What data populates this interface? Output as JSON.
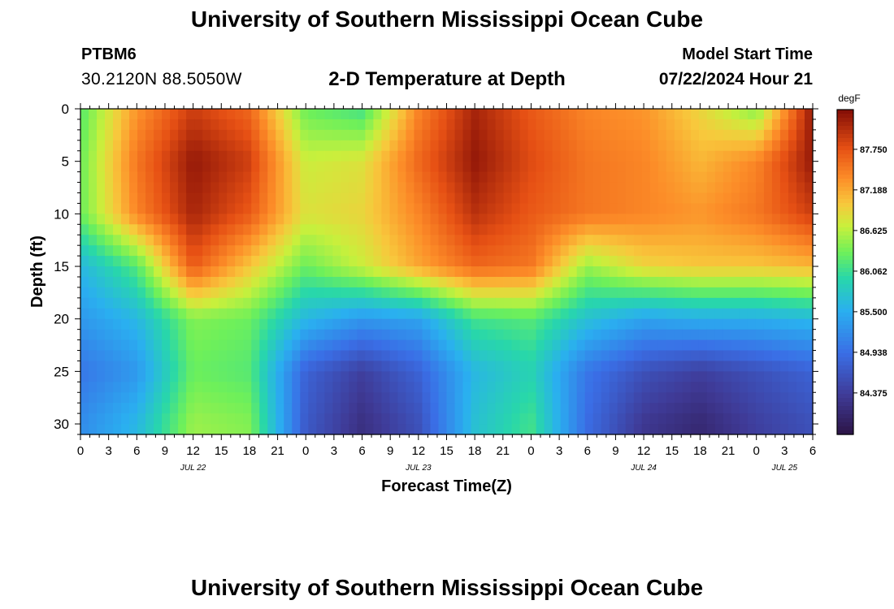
{
  "header": {
    "title": "University of Southern Mississippi Ocean Cube",
    "station_id": "PTBM6",
    "station_coords": "30.2120N  88.5050W",
    "subtitle": "2-D Temperature at Depth",
    "model_start_label": "Model Start Time",
    "model_start_value": "07/22/2024 Hour 21"
  },
  "footer": {
    "title": "University of Southern Mississippi Ocean Cube"
  },
  "chart_data": {
    "type": "heatmap",
    "title": "2-D Temperature at Depth",
    "xlabel": "Forecast Time(Z)",
    "ylabel": "Depth (ft)",
    "x_range_hours": [
      0,
      78
    ],
    "x_origin": "07/22/2024 00Z",
    "x_tick_labels": [
      "0",
      "3",
      "6",
      "9",
      "12",
      "15",
      "18",
      "21",
      "0",
      "3",
      "6",
      "9",
      "12",
      "15",
      "18",
      "21",
      "0",
      "3",
      "6",
      "9",
      "12",
      "15",
      "18",
      "21",
      "0",
      "3",
      "6"
    ],
    "date_labels": [
      {
        "label": "JUL 22",
        "hour": 12
      },
      {
        "label": "JUL 23",
        "hour": 36
      },
      {
        "label": "JUL 24",
        "hour": 60
      },
      {
        "label": "JUL 25",
        "hour": 75
      }
    ],
    "y_range_ft": [
      0,
      31
    ],
    "y_tick_labels": [
      "0",
      "5",
      "10",
      "15",
      "20",
      "25",
      "30"
    ],
    "y_tick_values": [
      0,
      5,
      10,
      15,
      20,
      25,
      30
    ],
    "colorbar": {
      "unit": "degF",
      "min": 83.8,
      "max": 88.3,
      "tick_labels": [
        "87.750",
        "87.188",
        "86.625",
        "86.062",
        "85.500",
        "84.938",
        "84.375"
      ],
      "tick_values": [
        87.75,
        87.188,
        86.625,
        86.062,
        85.5,
        84.938,
        84.375
      ]
    },
    "depths_ft": [
      0,
      5,
      10,
      15,
      20,
      25,
      30
    ],
    "times_hours": [
      0,
      6,
      12,
      18,
      24,
      30,
      36,
      42,
      48,
      54,
      60,
      66,
      72,
      78
    ],
    "temperature_degF": [
      [
        86.2,
        87.3,
        87.9,
        87.6,
        86.3,
        86.1,
        87.4,
        88.1,
        87.7,
        87.4,
        87.3,
        86.9,
        86.4,
        88.2
      ],
      [
        86.3,
        87.5,
        88.2,
        87.9,
        86.7,
        86.8,
        87.6,
        88.2,
        87.8,
        87.5,
        87.4,
        87.1,
        87.4,
        88.2
      ],
      [
        86.3,
        87.4,
        88.1,
        87.7,
        86.8,
        86.9,
        87.4,
        88.0,
        87.7,
        87.5,
        87.4,
        87.3,
        87.5,
        87.9
      ],
      [
        85.6,
        86.2,
        87.7,
        87.0,
        86.3,
        86.7,
        87.2,
        87.6,
        87.5,
        86.5,
        86.9,
        87.0,
        87.0,
        87.1
      ],
      [
        85.3,
        85.6,
        86.4,
        86.3,
        85.6,
        85.3,
        85.4,
        86.1,
        86.2,
        85.7,
        85.4,
        85.5,
        85.5,
        85.6
      ],
      [
        85.0,
        85.3,
        86.3,
        86.2,
        84.8,
        84.4,
        84.8,
        85.6,
        85.9,
        85.0,
        84.6,
        84.4,
        84.6,
        84.8
      ],
      [
        85.2,
        85.6,
        86.5,
        86.4,
        84.7,
        84.2,
        84.6,
        85.7,
        86.1,
        84.9,
        84.3,
        84.1,
        84.4,
        84.6
      ]
    ]
  }
}
